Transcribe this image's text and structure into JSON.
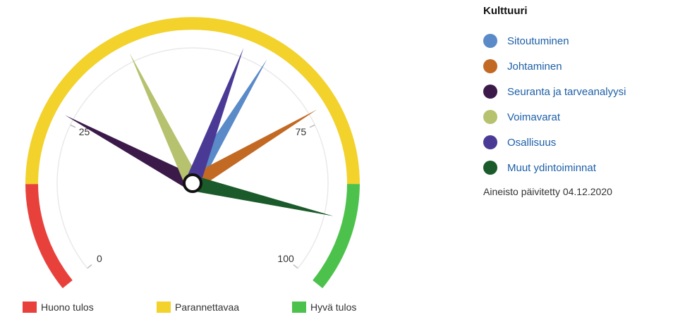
{
  "chart_data": {
    "type": "gauge",
    "title": "",
    "range": [
      0,
      100
    ],
    "ticks": [
      {
        "value": 0,
        "label": "0"
      },
      {
        "value": 25,
        "label": "25"
      },
      {
        "value": 75,
        "label": "75"
      },
      {
        "value": 100,
        "label": "100"
      }
    ],
    "bands": [
      {
        "name": "Huono tulos",
        "from": 0,
        "to": 15,
        "color": "#e8413c"
      },
      {
        "name": "Parannettavaa",
        "from": 15,
        "to": 85,
        "color": "#f2d22b"
      },
      {
        "name": "Hyvä tulos",
        "from": 85,
        "to": 100,
        "color": "#4cc24c"
      }
    ],
    "series": [
      {
        "name": "Sitoutuminen",
        "value": 62,
        "color": "#5b8ac8"
      },
      {
        "name": "Johtaminen",
        "value": 73,
        "color": "#c26a24"
      },
      {
        "name": "Seuranta ja tarveanalyysi",
        "value": 26,
        "color": "#3b1a4a"
      },
      {
        "name": "Voimavarat",
        "value": 40,
        "color": "#b6c26e"
      },
      {
        "name": "Osallisuus",
        "value": 58,
        "color": "#4a3a96"
      },
      {
        "name": "Muut ydintoiminnat",
        "value": 90,
        "color": "#1b5a2a"
      }
    ]
  },
  "legend": {
    "title": "Kulttuuri",
    "updated": "Aineisto päivitetty 04.12.2020"
  }
}
